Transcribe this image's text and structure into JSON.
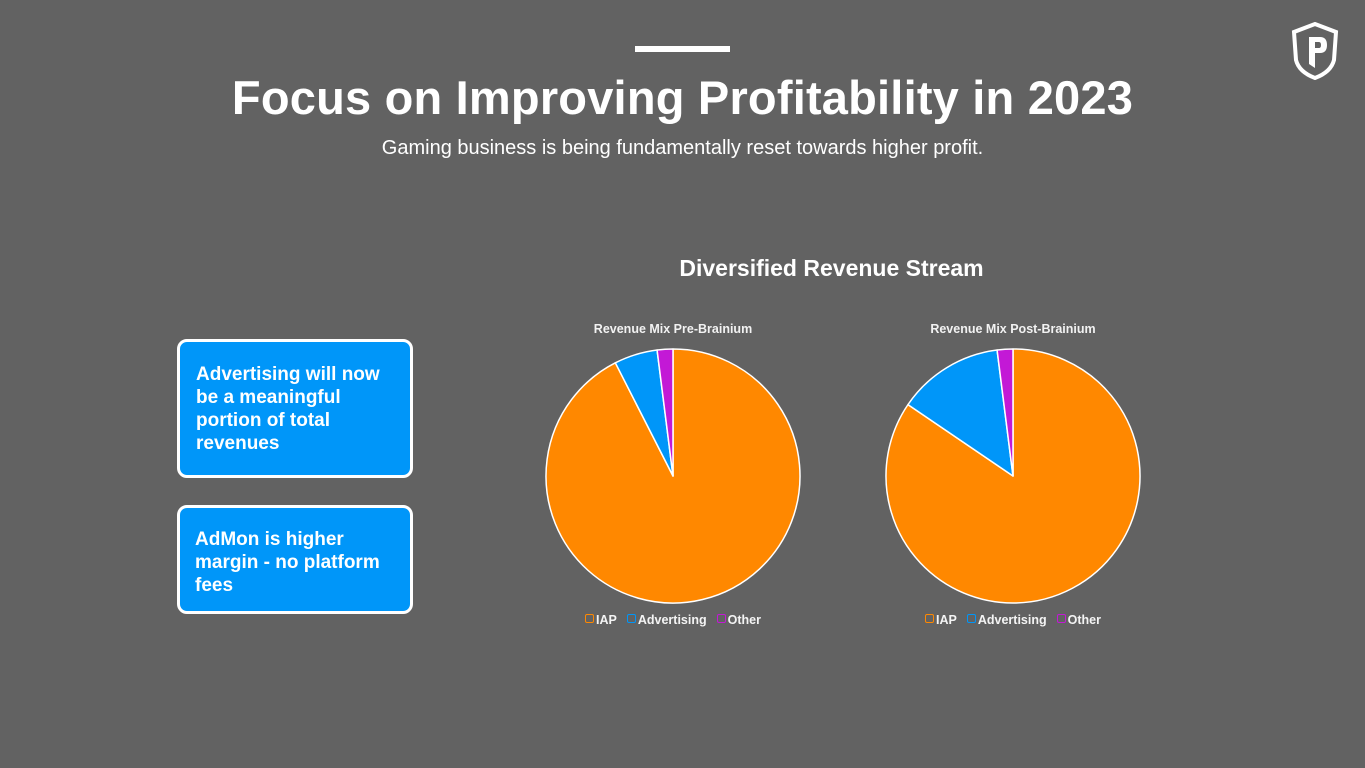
{
  "page": {
    "title": "Focus on Improving Profitability in 2023",
    "subtitle": "Gaming business is being fundamentally reset towards higher profit.",
    "section_title": "Diversified Revenue Stream",
    "logo": "p-shield-logo-icon"
  },
  "callouts": [
    {
      "text": "Advertising will now be a meaningful portion of total revenues"
    },
    {
      "text": "AdMon is higher margin - no platform fees"
    }
  ],
  "colors": {
    "background": "#626262",
    "IAP": "#ff8800",
    "Advertising": "#0096f9",
    "Other": "#c319d6",
    "callout": "#0096f9"
  },
  "chart_data": [
    {
      "type": "pie",
      "title": "Revenue Mix Pre-Brainium",
      "categories": [
        "IAP",
        "Advertising",
        "Other"
      ],
      "values": [
        92.5,
        5.5,
        2.0
      ],
      "legend_position": "bottom"
    },
    {
      "type": "pie",
      "title": "Revenue Mix Post-Brainium",
      "categories": [
        "IAP",
        "Advertising",
        "Other"
      ],
      "values": [
        84.5,
        13.5,
        2.0
      ],
      "legend_position": "bottom"
    }
  ]
}
